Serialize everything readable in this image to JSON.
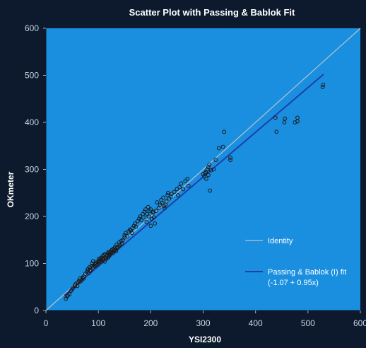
{
  "chart_data": {
    "type": "scatter",
    "title": "Scatter Plot with Passing & Bablok Fit",
    "xlabel": "YSI2300",
    "ylabel": "OKmeter",
    "xlim": [
      0,
      600
    ],
    "ylim": [
      0,
      600
    ],
    "x_ticks": [
      0,
      100,
      200,
      300,
      400,
      500,
      600
    ],
    "y_ticks": [
      0,
      100,
      200,
      300,
      400,
      500,
      600
    ],
    "grid": false,
    "legend_position": "bottom-right",
    "legend": [
      {
        "label": "Identity",
        "color": "#b4c4cc"
      },
      {
        "label": "Passing & Bablok (I) fit",
        "label2": "(-1.07 + 0.95x)",
        "color": "#1c3fa8"
      }
    ],
    "lines": [
      {
        "name": "Identity",
        "x": [
          0,
          600
        ],
        "y": [
          0,
          600
        ],
        "color": "#b4c4cc"
      },
      {
        "name": "Passing & Bablok (I) fit",
        "x": [
          35,
          530
        ],
        "y": [
          32.2,
          502.4
        ],
        "color": "#1c3fa8"
      }
    ],
    "series": [
      {
        "x": [
          38,
          40,
          42,
          45,
          48,
          50,
          52,
          55,
          56,
          58,
          60,
          62,
          63,
          65,
          66,
          68,
          70,
          72,
          72,
          75,
          78,
          80,
          80,
          82,
          83,
          84,
          85,
          86,
          88,
          88,
          90,
          90,
          92,
          93,
          95,
          95,
          96,
          98,
          100,
          100,
          101,
          102,
          103,
          104,
          105,
          106,
          108,
          108,
          110,
          110,
          112,
          112,
          113,
          115,
          115,
          116,
          118,
          118,
          120,
          120,
          121,
          122,
          123,
          124,
          125,
          126,
          127,
          128,
          129,
          130,
          131,
          132,
          133,
          134,
          135,
          136,
          138,
          140,
          140,
          142,
          144,
          145,
          147,
          150,
          150,
          152,
          155,
          158,
          160,
          162,
          164,
          165,
          168,
          170,
          172,
          175,
          178,
          180,
          182,
          185,
          186,
          188,
          190,
          192,
          193,
          195,
          196,
          198,
          200,
          200,
          202,
          204,
          205,
          206,
          208,
          210,
          212,
          215,
          218,
          220,
          222,
          224,
          225,
          226,
          228,
          230,
          232,
          233,
          235,
          238,
          240,
          245,
          250,
          252,
          255,
          258,
          262,
          266,
          270,
          272,
          300,
          302,
          304,
          305,
          306,
          308,
          310,
          310,
          312,
          313,
          315,
          320,
          324,
          330,
          338,
          340,
          352,
          352,
          438,
          440,
          455,
          456,
          475,
          480,
          480,
          528,
          529
        ],
        "y": [
          25,
          30,
          32,
          35,
          42,
          45,
          48,
          52,
          55,
          58,
          52,
          60,
          63,
          68,
          62,
          65,
          70,
          72,
          68,
          78,
          82,
          85,
          88,
          80,
          92,
          84,
          90,
          86,
          95,
          100,
          92,
          105,
          96,
          94,
          102,
          98,
          100,
          97,
          105,
          100,
          110,
          104,
          108,
          103,
          112,
          107,
          110,
          115,
          108,
          118,
          112,
          104,
          120,
          115,
          110,
          118,
          122,
          112,
          125,
          115,
          120,
          118,
          124,
          122,
          128,
          125,
          130,
          122,
          127,
          132,
          128,
          135,
          130,
          126,
          140,
          134,
          136,
          145,
          138,
          140,
          148,
          142,
          150,
          155,
          160,
          165,
          158,
          168,
          172,
          170,
          165,
          175,
          180,
          185,
          178,
          190,
          195,
          200,
          192,
          205,
          198,
          210,
          215,
          188,
          205,
          220,
          200,
          212,
          180,
          215,
          195,
          208,
          210,
          198,
          185,
          212,
          230,
          218,
          225,
          235,
          228,
          240,
          222,
          218,
          225,
          232,
          245,
          250,
          238,
          242,
          248,
          252,
          258,
          245,
          262,
          270,
          258,
          275,
          280,
          265,
          290,
          285,
          292,
          295,
          280,
          300,
          305,
          288,
          310,
          255,
          298,
          300,
          320,
          345,
          348,
          380,
          325,
          320,
          410,
          380,
          400,
          408,
          400,
          402,
          410,
          475,
          480
        ]
      }
    ]
  }
}
